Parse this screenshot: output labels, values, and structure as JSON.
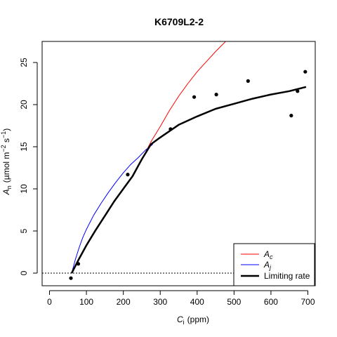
{
  "chart_data": {
    "type": "scatter",
    "title": "K6709L2-2",
    "xlabel": {
      "main": "C",
      "sub": "i",
      "unit": "(ppm)"
    },
    "ylabel": {
      "main": "A",
      "sub": "n",
      "unit_prefix": "(µmol m",
      "exp1": "−2",
      "unit_mid": " s",
      "exp2": "−1",
      "unit_suffix": ")"
    },
    "xlim": [
      -20,
      720
    ],
    "ylim": [
      -1.5,
      27.5
    ],
    "x_ticks": [
      0,
      100,
      200,
      300,
      400,
      500,
      600,
      700
    ],
    "y_ticks": [
      0,
      5,
      10,
      15,
      20,
      25
    ],
    "reference_line": {
      "y": 0,
      "style": "dotted"
    },
    "points": [
      {
        "x": 58,
        "y": -0.6
      },
      {
        "x": 78,
        "y": 1.1
      },
      {
        "x": 212,
        "y": 11.7
      },
      {
        "x": 328,
        "y": 17.1
      },
      {
        "x": 392,
        "y": 20.9
      },
      {
        "x": 452,
        "y": 21.2
      },
      {
        "x": 538,
        "y": 22.8
      },
      {
        "x": 655,
        "y": 18.7
      },
      {
        "x": 672,
        "y": 21.6
      },
      {
        "x": 693,
        "y": 23.9
      }
    ],
    "series": [
      {
        "name": "A_c",
        "legend_main": "A",
        "legend_sub": "c",
        "color": "#ff0000",
        "x": [
          60,
          80,
          100,
          125,
          150,
          175,
          200,
          225,
          250,
          275,
          300,
          325,
          350,
          375,
          400,
          425,
          450,
          475,
          500
        ],
        "y": [
          0.0,
          1.7,
          3.3,
          5.1,
          6.8,
          8.5,
          10.0,
          11.5,
          13.5,
          15.6,
          17.4,
          19.3,
          21.0,
          22.5,
          23.9,
          25.1,
          26.3,
          27.4,
          28.5
        ]
      },
      {
        "name": "A_j",
        "legend_main": "A",
        "legend_sub": "j",
        "color": "#0000ff",
        "x": [
          60,
          70,
          80,
          90,
          100,
          120,
          140,
          160,
          180,
          200,
          220,
          240,
          260,
          280
        ],
        "y": [
          0.0,
          1.6,
          3.0,
          4.2,
          5.2,
          6.9,
          8.3,
          9.6,
          10.8,
          11.9,
          12.9,
          13.7,
          14.6,
          15.3
        ]
      },
      {
        "name": "Limiting rate",
        "color": "#000000",
        "x": [
          60,
          80,
          100,
          125,
          150,
          175,
          200,
          225,
          250,
          275,
          300,
          350,
          400,
          450,
          500,
          550,
          600,
          650,
          695
        ],
        "y": [
          0.0,
          1.7,
          3.3,
          5.1,
          6.8,
          8.5,
          10.0,
          11.5,
          13.5,
          15.3,
          16.1,
          17.6,
          18.6,
          19.5,
          20.1,
          20.7,
          21.2,
          21.6,
          22.1
        ]
      }
    ],
    "legend": {
      "position": "bottom-right",
      "entries": [
        "A_c",
        "A_j",
        "Limiting rate"
      ]
    },
    "grid": false
  }
}
